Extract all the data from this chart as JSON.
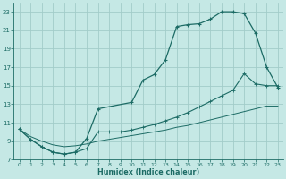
{
  "xlabel": "Humidex (Indice chaleur)",
  "bg_color": "#c5e8e5",
  "grid_color": "#a2ccc9",
  "line_color": "#1c6b65",
  "xticks": [
    0,
    1,
    2,
    3,
    4,
    5,
    6,
    7,
    8,
    9,
    10,
    11,
    12,
    13,
    14,
    15,
    16,
    17,
    18,
    19,
    20,
    21,
    22,
    23
  ],
  "yticks": [
    7,
    9,
    11,
    13,
    15,
    17,
    19,
    21,
    23
  ],
  "curve1_x": [
    0,
    1,
    2,
    3,
    4,
    5,
    6,
    7,
    10,
    11,
    12,
    13,
    14,
    15,
    16,
    17,
    18,
    19,
    20,
    21,
    22,
    23
  ],
  "curve1_y": [
    10.3,
    9.2,
    8.4,
    7.8,
    7.6,
    7.8,
    9.3,
    12.5,
    13.2,
    15.6,
    16.2,
    17.8,
    21.4,
    21.6,
    21.7,
    22.2,
    23.0,
    23.0,
    22.8,
    20.7,
    17.0,
    14.8
  ],
  "curve2_x": [
    0,
    1,
    2,
    3,
    4,
    5,
    6,
    7,
    8,
    9,
    10,
    11,
    12,
    13,
    14,
    15,
    16,
    17,
    18,
    19,
    20,
    21,
    22,
    23
  ],
  "curve2_y": [
    10.3,
    9.2,
    8.4,
    7.8,
    7.6,
    7.8,
    8.2,
    10.0,
    10.0,
    10.0,
    10.2,
    10.5,
    10.8,
    11.2,
    11.6,
    12.1,
    12.7,
    13.3,
    13.9,
    14.5,
    16.3,
    15.2,
    15.0,
    15.0
  ],
  "curve3_x": [
    0,
    1,
    2,
    3,
    4,
    5,
    6,
    7,
    8,
    9,
    10,
    11,
    12,
    13,
    14,
    15,
    16,
    17,
    18,
    19,
    20,
    21,
    22,
    23
  ],
  "curve3_y": [
    10.3,
    9.5,
    9.0,
    8.6,
    8.4,
    8.5,
    8.7,
    9.0,
    9.2,
    9.4,
    9.6,
    9.8,
    10.0,
    10.2,
    10.5,
    10.7,
    11.0,
    11.3,
    11.6,
    11.9,
    12.2,
    12.5,
    12.8,
    12.8
  ]
}
